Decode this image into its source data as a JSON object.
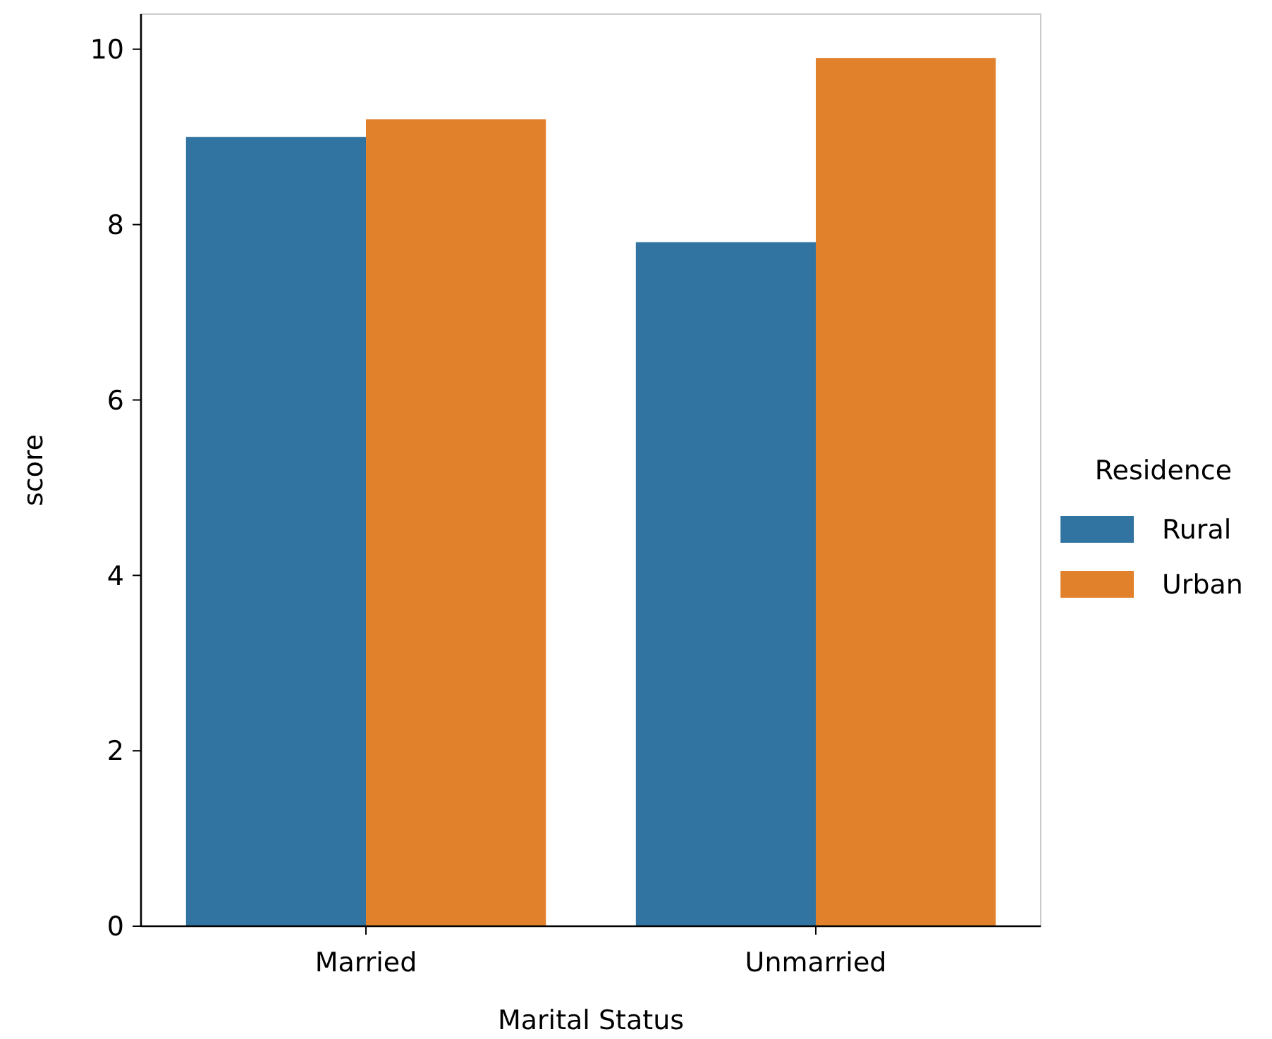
{
  "chart_data": {
    "type": "bar",
    "xlabel": "Marital Status",
    "ylabel": "score",
    "legend_title": "Residence",
    "categories": [
      "Married",
      "Unmarried"
    ],
    "series": [
      {
        "name": "Rural",
        "color": "#3274a1",
        "values": [
          9.0,
          7.8
        ]
      },
      {
        "name": "Urban",
        "color": "#e1812c",
        "values": [
          9.2,
          9.9
        ]
      }
    ],
    "ylim": [
      0,
      10.4
    ],
    "yticks": [
      0,
      2,
      4,
      6,
      8,
      10
    ],
    "grid": false,
    "legend": "right"
  }
}
